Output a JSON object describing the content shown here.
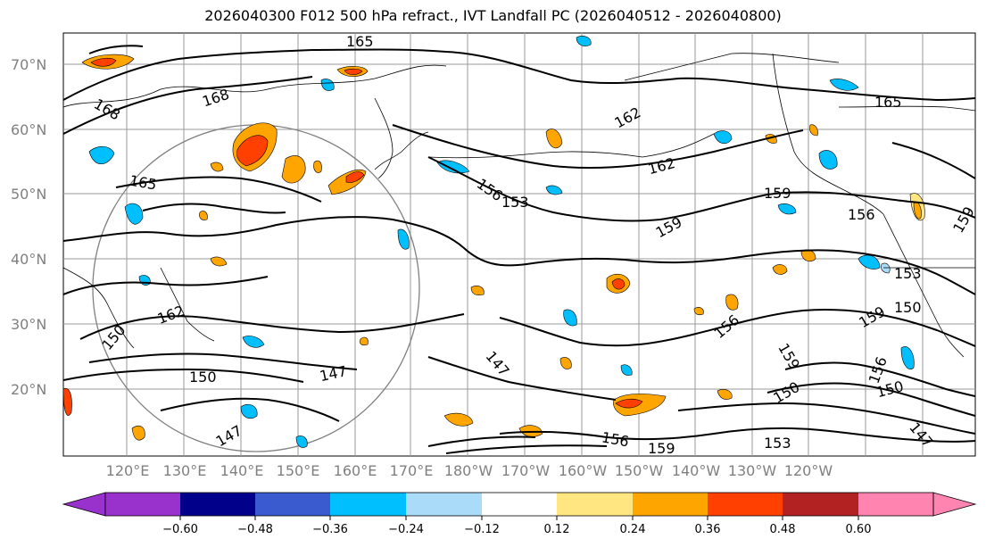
{
  "title": "2026040300 F012 500 hPa refract., IVT Landfall PC (2026040512 - 2026040800)",
  "map": {
    "lat_labels": [
      "70°N",
      "60°N",
      "50°N",
      "40°N",
      "30°N",
      "20°N"
    ],
    "lon_labels": [
      "120°E",
      "130°E",
      "140°E",
      "150°E",
      "160°E",
      "170°E",
      "180°W",
      "170°W",
      "160°W",
      "150°W",
      "140°W",
      "130°W",
      "120°W"
    ],
    "contour_labels": [
      "165",
      "168",
      "168",
      "165",
      "162",
      "165",
      "162",
      "159",
      "156",
      "153",
      "159",
      "156",
      "159",
      "153",
      "150",
      "156",
      "159",
      "156",
      "150",
      "162",
      "150",
      "147",
      "147",
      "147",
      "150",
      "156",
      "159",
      "153",
      "147",
      "150",
      "159"
    ]
  },
  "colorbar": {
    "ticks": [
      "−0.60",
      "−0.48",
      "−0.36",
      "−0.24",
      "−0.12",
      "0.12",
      "0.24",
      "0.36",
      "0.48",
      "0.60"
    ],
    "colors": [
      "#9932cc",
      "#00008b",
      "#3a5bcf",
      "#00bfff",
      "#aadcfa",
      "#ffffff",
      "#ffe680",
      "#ffa500",
      "#ff4000",
      "#b22222",
      "#ff85b0"
    ]
  }
}
